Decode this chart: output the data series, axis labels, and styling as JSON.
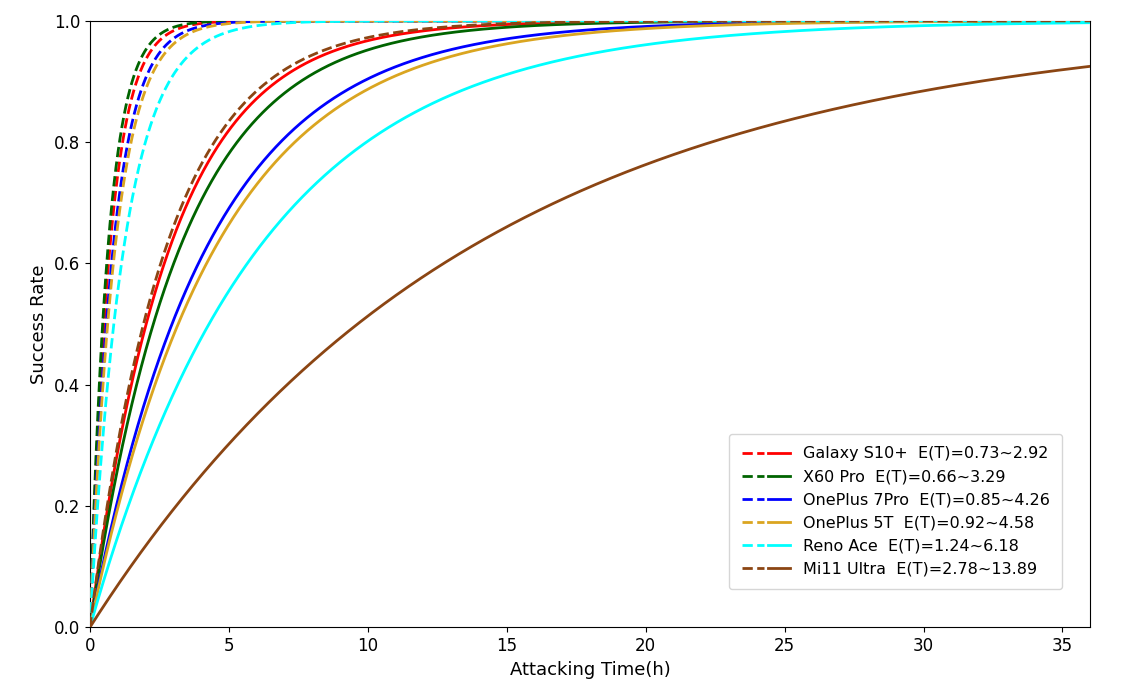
{
  "devices": [
    {
      "name": "Galaxy S10+",
      "label": "Galaxy S10+",
      "et_label": "E(T)=0.73~2.92",
      "et_min": 0.73,
      "et_max": 2.92,
      "color": "red"
    },
    {
      "name": "X60 Pro",
      "label": "X60 Pro",
      "et_label": "E(T)=0.66~3.29",
      "et_min": 0.66,
      "et_max": 3.29,
      "color": "darkgreen"
    },
    {
      "name": "OnePlus 7Pro",
      "label": "OnePlus 7Pro",
      "et_label": "E(T)=0.85~4.26",
      "et_min": 0.85,
      "et_max": 4.26,
      "color": "blue"
    },
    {
      "name": "OnePlus 5T",
      "label": "OnePlus 5T",
      "et_label": "E(T)=0.92~4.58",
      "et_min": 0.92,
      "et_max": 4.58,
      "color": "goldenrod"
    },
    {
      "name": "Reno Ace",
      "label": "Reno Ace",
      "et_label": "E(T)=1.24~6.18",
      "et_min": 1.24,
      "et_max": 6.18,
      "color": "cyan"
    },
    {
      "name": "Mi11 Ultra",
      "label": "Mi11 Ultra",
      "et_label": "E(T)=2.78~13.89",
      "et_min": 2.78,
      "et_max": 13.89,
      "color": "saddlebrown"
    }
  ],
  "xlabel": "Attacking Time(h)",
  "ylabel": "Success Rate",
  "xlim": [
    0,
    36
  ],
  "ylim": [
    0,
    1.0
  ],
  "xticks": [
    0,
    5,
    10,
    15,
    20,
    25,
    30,
    35
  ],
  "yticks": [
    0.0,
    0.2,
    0.4,
    0.6,
    0.8,
    1.0
  ],
  "legend_loc": "lower right",
  "figsize": [
    11.24,
    6.97
  ],
  "dpi": 100
}
